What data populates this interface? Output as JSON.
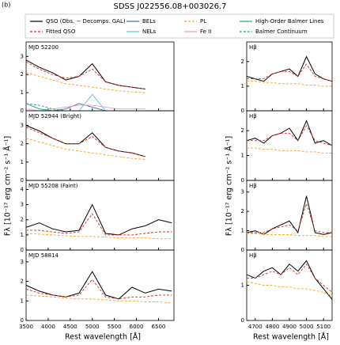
{
  "panel_label": "(b)",
  "title": "SDSS J022556.08+003026.7",
  "legend": [
    {
      "name": "QSO (Obs. − Decomps. GAL)",
      "color": "#000000",
      "dash": false
    },
    {
      "name": "Fitted QSO",
      "color": "#d62728",
      "dash": true
    },
    {
      "name": "BELs",
      "color": "#3a6fb0",
      "dash": false
    },
    {
      "name": "NELs",
      "color": "#5bc0eb",
      "dash": false
    },
    {
      "name": "PL",
      "color": "#ff9f1c",
      "dash": true
    },
    {
      "name": "Fe II",
      "color": "#e7a0b8",
      "dash": false
    },
    {
      "name": "High-Order Balmer Lines",
      "color": "#1aa38a",
      "dash": false
    },
    {
      "name": "Balmer Continuum",
      "color": "#1aa38a",
      "dash": true
    }
  ],
  "xlabel": "Rest wavelength [Å]",
  "ylabel": "Fλ [10⁻¹⁷ erg cm⁻² s⁻¹ Å⁻¹]",
  "chart_data": [
    {
      "type": "line",
      "label": "MJD 52200",
      "x": [
        3500,
        3800,
        4100,
        4400,
        4700,
        5000,
        5300,
        5600,
        5900,
        6200,
        6500,
        6800
      ],
      "xlim": [
        3500,
        6850
      ],
      "xticks": [
        3500,
        4000,
        4500,
        5000,
        5500,
        6000,
        6500
      ],
      "ylim": [
        0,
        3.8
      ],
      "yticks": [
        0,
        1,
        2,
        3
      ],
      "series": [
        {
          "color": "#000000",
          "dash": false,
          "values": [
            2.8,
            2.4,
            2.1,
            1.7,
            1.9,
            2.6,
            1.6,
            1.4,
            1.3,
            1.2,
            null,
            null
          ]
        },
        {
          "color": "#d62728",
          "dash": true,
          "values": [
            2.7,
            2.3,
            2.0,
            1.8,
            1.9,
            2.3,
            1.6,
            1.4,
            1.3,
            1.2,
            null,
            null
          ]
        },
        {
          "color": "#3a6fb0",
          "dash": false,
          "values": [
            0,
            0,
            0,
            0.1,
            0.4,
            0.2,
            0,
            0,
            0,
            0,
            null,
            null
          ]
        },
        {
          "color": "#5bc0eb",
          "dash": false,
          "values": [
            0,
            0,
            0,
            0,
            0,
            0.9,
            0,
            0,
            0,
            0,
            null,
            null
          ]
        },
        {
          "color": "#ff9f1c",
          "dash": true,
          "values": [
            2.1,
            1.9,
            1.7,
            1.5,
            1.4,
            1.3,
            1.2,
            1.1,
            1.05,
            1.0,
            null,
            null
          ]
        },
        {
          "color": "#e7a0b8",
          "dash": false,
          "values": [
            0.1,
            0,
            0.1,
            0.2,
            0.3,
            0.3,
            0.2,
            0.1,
            0.1,
            0.1,
            null,
            null
          ]
        },
        {
          "color": "#1aa38a",
          "dash": false,
          "values": [
            0.4,
            0.1,
            0,
            0,
            0,
            0,
            0,
            0,
            0,
            0,
            null,
            null
          ]
        },
        {
          "color": "#1aa38a",
          "dash": true,
          "values": [
            0.4,
            0.3,
            0.1,
            0,
            0,
            0,
            0,
            0,
            0,
            0,
            null,
            null
          ]
        }
      ]
    },
    {
      "type": "line",
      "label": "MJD 52944 (Bright)",
      "x": [
        3500,
        3800,
        4100,
        4400,
        4700,
        5000,
        5300,
        5600,
        5900,
        6200,
        6500,
        6800
      ],
      "xlim": [
        3500,
        6850
      ],
      "xticks": [
        3500,
        4000,
        4500,
        5000,
        5500,
        6000,
        6500
      ],
      "ylim": [
        0,
        3.8
      ],
      "yticks": [
        0,
        1,
        2,
        3
      ],
      "series": [
        {
          "color": "#000000",
          "dash": false,
          "values": [
            3.0,
            2.7,
            2.3,
            2.0,
            2.0,
            2.6,
            1.8,
            1.6,
            1.5,
            1.3,
            null,
            null
          ]
        },
        {
          "color": "#d62728",
          "dash": true,
          "values": [
            2.9,
            2.6,
            2.3,
            2.0,
            2.0,
            2.4,
            1.8,
            1.6,
            1.5,
            1.3,
            null,
            null
          ]
        },
        {
          "color": "#ff9f1c",
          "dash": true,
          "values": [
            2.3,
            2.1,
            1.9,
            1.7,
            1.6,
            1.5,
            1.4,
            1.3,
            1.2,
            1.15,
            null,
            null
          ]
        }
      ]
    },
    {
      "type": "line",
      "label": "MJD 55208 (Faint)",
      "x": [
        3500,
        3800,
        4100,
        4400,
        4700,
        5000,
        5300,
        5600,
        5900,
        6200,
        6500,
        6800
      ],
      "xlim": [
        3500,
        6850
      ],
      "xticks": [
        3500,
        4000,
        4500,
        5000,
        5500,
        6000,
        6500
      ],
      "ylim": [
        0,
        4.6
      ],
      "yticks": [
        0,
        1,
        2,
        3,
        4
      ],
      "series": [
        {
          "color": "#000000",
          "dash": false,
          "values": [
            1.5,
            1.8,
            1.4,
            1.2,
            1.3,
            3.0,
            1.1,
            1.0,
            1.4,
            1.6,
            2.0,
            1.8
          ]
        },
        {
          "color": "#d62728",
          "dash": true,
          "values": [
            1.3,
            1.3,
            1.2,
            1.1,
            1.2,
            2.4,
            1.0,
            1.0,
            1.0,
            1.1,
            1.2,
            1.2
          ]
        },
        {
          "color": "#ff9f1c",
          "dash": true,
          "values": [
            1.1,
            1.05,
            1.0,
            0.95,
            0.9,
            0.9,
            0.85,
            0.8,
            0.8,
            0.8,
            0.75,
            0.75
          ]
        }
      ]
    },
    {
      "type": "line",
      "label": "MJD 58814",
      "x": [
        3500,
        3800,
        4100,
        4400,
        4700,
        5000,
        5300,
        5600,
        5900,
        6200,
        6500,
        6800
      ],
      "xlim": [
        3500,
        6850
      ],
      "xticks": [
        3500,
        4000,
        4500,
        5000,
        5500,
        6000,
        6500
      ],
      "ylim": [
        0,
        3.6
      ],
      "yticks": [
        0,
        1,
        2,
        3
      ],
      "series": [
        {
          "color": "#000000",
          "dash": false,
          "values": [
            1.8,
            1.5,
            1.3,
            1.2,
            1.4,
            2.5,
            1.3,
            1.1,
            1.7,
            1.4,
            1.6,
            1.5
          ]
        },
        {
          "color": "#d62728",
          "dash": true,
          "values": [
            1.6,
            1.4,
            1.3,
            1.2,
            1.3,
            2.1,
            1.2,
            1.1,
            1.2,
            1.2,
            1.3,
            1.3
          ]
        },
        {
          "color": "#ff9f1c",
          "dash": true,
          "values": [
            1.3,
            1.25,
            1.2,
            1.15,
            1.1,
            1.1,
            1.05,
            1.0,
            1.0,
            0.95,
            0.95,
            0.9
          ]
        }
      ]
    },
    {
      "type": "line",
      "label": "Hβ",
      "x": [
        4650,
        4700,
        4750,
        4800,
        4850,
        4900,
        4950,
        5000,
        5050,
        5100,
        5150
      ],
      "xlim": [
        4650,
        5150
      ],
      "xticks": [
        4700,
        4800,
        4900,
        5000,
        5100
      ],
      "ylim": [
        0,
        2.8
      ],
      "yticks": [
        0,
        1,
        2
      ],
      "series": [
        {
          "color": "#000000",
          "dash": false,
          "values": [
            1.4,
            1.3,
            1.2,
            1.5,
            1.6,
            1.7,
            1.4,
            2.2,
            1.5,
            1.3,
            1.2
          ]
        },
        {
          "color": "#d62728",
          "dash": true,
          "values": [
            1.3,
            1.3,
            1.3,
            1.5,
            1.6,
            1.6,
            1.4,
            1.9,
            1.4,
            1.3,
            1.2
          ]
        },
        {
          "color": "#ff9f1c",
          "dash": true,
          "values": [
            1.2,
            1.2,
            1.15,
            1.15,
            1.1,
            1.1,
            1.1,
            1.05,
            1.05,
            1.0,
            1.0
          ]
        }
      ]
    },
    {
      "type": "line",
      "label": "Hβ",
      "x": [
        4650,
        4700,
        4750,
        4800,
        4850,
        4900,
        4950,
        5000,
        5050,
        5100,
        5150
      ],
      "xlim": [
        4650,
        5150
      ],
      "xticks": [
        4700,
        4800,
        4900,
        5000,
        5100
      ],
      "ylim": [
        0,
        2.8
      ],
      "yticks": [
        0,
        1,
        2
      ],
      "series": [
        {
          "color": "#000000",
          "dash": false,
          "values": [
            1.6,
            1.7,
            1.5,
            1.8,
            1.9,
            2.1,
            1.6,
            2.4,
            1.5,
            1.6,
            1.4
          ]
        },
        {
          "color": "#d62728",
          "dash": true,
          "values": [
            1.6,
            1.6,
            1.6,
            1.8,
            1.9,
            1.9,
            1.6,
            2.2,
            1.6,
            1.5,
            1.4
          ]
        },
        {
          "color": "#ff9f1c",
          "dash": true,
          "values": [
            1.3,
            1.3,
            1.25,
            1.25,
            1.2,
            1.2,
            1.2,
            1.15,
            1.15,
            1.1,
            1.1
          ]
        }
      ]
    },
    {
      "type": "line",
      "label": "Hβ",
      "x": [
        4650,
        4700,
        4750,
        4800,
        4850,
        4900,
        4950,
        5000,
        5050,
        5100,
        5150
      ],
      "xlim": [
        4650,
        5150
      ],
      "xticks": [
        4700,
        4800,
        4900,
        5000,
        5100
      ],
      "ylim": [
        0,
        3.6
      ],
      "yticks": [
        0,
        1,
        2,
        3
      ],
      "series": [
        {
          "color": "#000000",
          "dash": false,
          "values": [
            0.9,
            1.0,
            0.8,
            1.1,
            1.3,
            1.5,
            0.9,
            2.8,
            0.9,
            0.8,
            0.9
          ]
        },
        {
          "color": "#d62728",
          "dash": true,
          "values": [
            0.9,
            0.9,
            0.9,
            1.1,
            1.2,
            1.3,
            1.0,
            2.4,
            1.0,
            0.9,
            0.9
          ]
        },
        {
          "color": "#ff9f1c",
          "dash": true,
          "values": [
            0.85,
            0.85,
            0.8,
            0.8,
            0.8,
            0.8,
            0.75,
            0.75,
            0.75,
            0.7,
            0.7
          ]
        }
      ]
    },
    {
      "type": "line",
      "label": "Hβ",
      "x": [
        4650,
        4700,
        4750,
        4800,
        4850,
        4900,
        4950,
        5000,
        5050,
        5100,
        5150
      ],
      "xlim": [
        4650,
        5150
      ],
      "xticks": [
        4700,
        4800,
        4900,
        5000,
        5100
      ],
      "ylim": [
        0,
        2
      ],
      "yticks": [
        0,
        1
      ],
      "series": [
        {
          "color": "#000000",
          "dash": false,
          "values": [
            1.3,
            1.2,
            1.4,
            1.5,
            1.3,
            1.6,
            1.4,
            1.7,
            1.2,
            0.9,
            0.6
          ]
        },
        {
          "color": "#d62728",
          "dash": true,
          "values": [
            1.2,
            1.2,
            1.3,
            1.4,
            1.3,
            1.5,
            1.3,
            1.6,
            1.2,
            1.0,
            0.8
          ]
        },
        {
          "color": "#ff9f1c",
          "dash": true,
          "values": [
            1.1,
            1.05,
            1.0,
            1.0,
            0.95,
            0.95,
            0.9,
            0.9,
            0.85,
            0.8,
            0.7
          ]
        }
      ]
    }
  ]
}
